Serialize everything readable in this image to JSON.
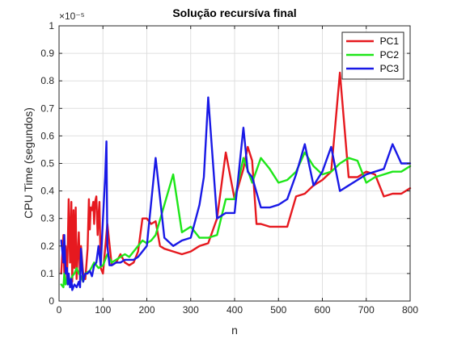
{
  "chart_data": {
    "type": "line",
    "title": "Solução recursíva final",
    "xlabel": "n",
    "ylabel": "CPU Time (segundos)",
    "exponent_label": "×10⁻⁵",
    "xlim": [
      0,
      800
    ],
    "ylim": [
      0,
      1
    ],
    "y_scale": 1e-05,
    "xticks": [
      0,
      100,
      200,
      300,
      400,
      500,
      600,
      700,
      800
    ],
    "xtick_labels": [
      "0",
      "100",
      "200",
      "300",
      "400",
      "500",
      "600",
      "700",
      "800"
    ],
    "yticks": [
      0,
      0.1,
      0.2,
      0.3,
      0.4,
      0.5,
      0.6,
      0.7,
      0.8,
      0.9,
      1
    ],
    "ytick_labels": [
      "0",
      "0.1",
      "0.2",
      "0.3",
      "0.4",
      "0.5",
      "0.6",
      "0.7",
      "0.8",
      "0.9",
      "1"
    ],
    "grid": true,
    "legend_position": "top-right",
    "series": [
      {
        "name": "PC1",
        "color": "#e6191f",
        "x": [
          5,
          10,
          12,
          15,
          18,
          20,
          22,
          25,
          28,
          30,
          33,
          35,
          38,
          40,
          45,
          48,
          50,
          55,
          60,
          65,
          68,
          70,
          72,
          75,
          78,
          80,
          82,
          85,
          88,
          90,
          92,
          95,
          100,
          110,
          120,
          130,
          140,
          150,
          160,
          170,
          180,
          190,
          200,
          210,
          220,
          230,
          240,
          260,
          280,
          300,
          320,
          340,
          360,
          380,
          400,
          420,
          430,
          440,
          450,
          460,
          480,
          500,
          520,
          540,
          560,
          580,
          600,
          620,
          640,
          660,
          680,
          700,
          720,
          740,
          760,
          780,
          800
        ],
        "y": [
          0.1,
          0.24,
          0.1,
          0.2,
          0.08,
          0.2,
          0.37,
          0.14,
          0.36,
          0.07,
          0.33,
          0.12,
          0.34,
          0.08,
          0.25,
          0.07,
          0.2,
          0.1,
          0.08,
          0.19,
          0.37,
          0.26,
          0.34,
          0.33,
          0.36,
          0.28,
          0.36,
          0.38,
          0.24,
          0.31,
          0.36,
          0.12,
          0.1,
          0.28,
          0.13,
          0.14,
          0.17,
          0.14,
          0.13,
          0.14,
          0.18,
          0.3,
          0.3,
          0.28,
          0.29,
          0.2,
          0.19,
          0.18,
          0.17,
          0.18,
          0.2,
          0.21,
          0.3,
          0.54,
          0.37,
          0.48,
          0.56,
          0.51,
          0.28,
          0.28,
          0.27,
          0.27,
          0.27,
          0.38,
          0.39,
          0.42,
          0.44,
          0.47,
          0.83,
          0.45,
          0.45,
          0.47,
          0.46,
          0.38,
          0.39,
          0.39,
          0.41
        ]
      },
      {
        "name": "PC2",
        "color": "#1ee619",
        "x": [
          5,
          10,
          12,
          15,
          18,
          20,
          25,
          30,
          35,
          40,
          45,
          50,
          55,
          60,
          70,
          80,
          90,
          100,
          110,
          120,
          130,
          140,
          150,
          160,
          170,
          180,
          190,
          200,
          210,
          220,
          240,
          260,
          280,
          300,
          320,
          340,
          360,
          380,
          400,
          420,
          440,
          460,
          480,
          500,
          520,
          540,
          560,
          580,
          600,
          620,
          640,
          660,
          680,
          700,
          720,
          740,
          760,
          780,
          800
        ],
        "y": [
          0.06,
          0.05,
          0.1,
          0.06,
          0.08,
          0.1,
          0.07,
          0.09,
          0.1,
          0.12,
          0.1,
          0.09,
          0.07,
          0.1,
          0.11,
          0.14,
          0.12,
          0.13,
          0.17,
          0.14,
          0.15,
          0.16,
          0.17,
          0.16,
          0.18,
          0.2,
          0.22,
          0.21,
          0.22,
          0.24,
          0.35,
          0.46,
          0.25,
          0.27,
          0.23,
          0.23,
          0.24,
          0.37,
          0.37,
          0.52,
          0.43,
          0.52,
          0.48,
          0.43,
          0.44,
          0.47,
          0.54,
          0.49,
          0.46,
          0.47,
          0.5,
          0.52,
          0.51,
          0.43,
          0.45,
          0.46,
          0.47,
          0.47,
          0.49
        ]
      },
      {
        "name": "PC3",
        "color": "#1919e6",
        "x": [
          5,
          10,
          12,
          15,
          18,
          20,
          22,
          25,
          28,
          30,
          35,
          40,
          45,
          48,
          50,
          55,
          60,
          65,
          70,
          75,
          80,
          85,
          90,
          95,
          100,
          105,
          108,
          110,
          115,
          120,
          130,
          140,
          150,
          160,
          170,
          180,
          200,
          220,
          240,
          260,
          280,
          300,
          320,
          330,
          340,
          360,
          380,
          400,
          420,
          430,
          440,
          460,
          480,
          500,
          520,
          540,
          560,
          580,
          600,
          620,
          640,
          660,
          680,
          700,
          720,
          740,
          760,
          780,
          800
        ],
        "y": [
          0.22,
          0.14,
          0.24,
          0.1,
          0.12,
          0.06,
          0.1,
          0.05,
          0.08,
          0.04,
          0.06,
          0.05,
          0.07,
          0.05,
          0.19,
          0.07,
          0.1,
          0.1,
          0.11,
          0.09,
          0.13,
          0.14,
          0.2,
          0.13,
          0.3,
          0.45,
          0.58,
          0.2,
          0.13,
          0.13,
          0.14,
          0.14,
          0.15,
          0.15,
          0.15,
          0.16,
          0.2,
          0.52,
          0.23,
          0.2,
          0.22,
          0.23,
          0.35,
          0.45,
          0.74,
          0.3,
          0.32,
          0.32,
          0.63,
          0.47,
          0.45,
          0.34,
          0.34,
          0.35,
          0.37,
          0.46,
          0.57,
          0.42,
          0.47,
          0.56,
          0.4,
          0.42,
          0.44,
          0.46,
          0.47,
          0.48,
          0.57,
          0.5,
          0.5
        ]
      }
    ]
  }
}
